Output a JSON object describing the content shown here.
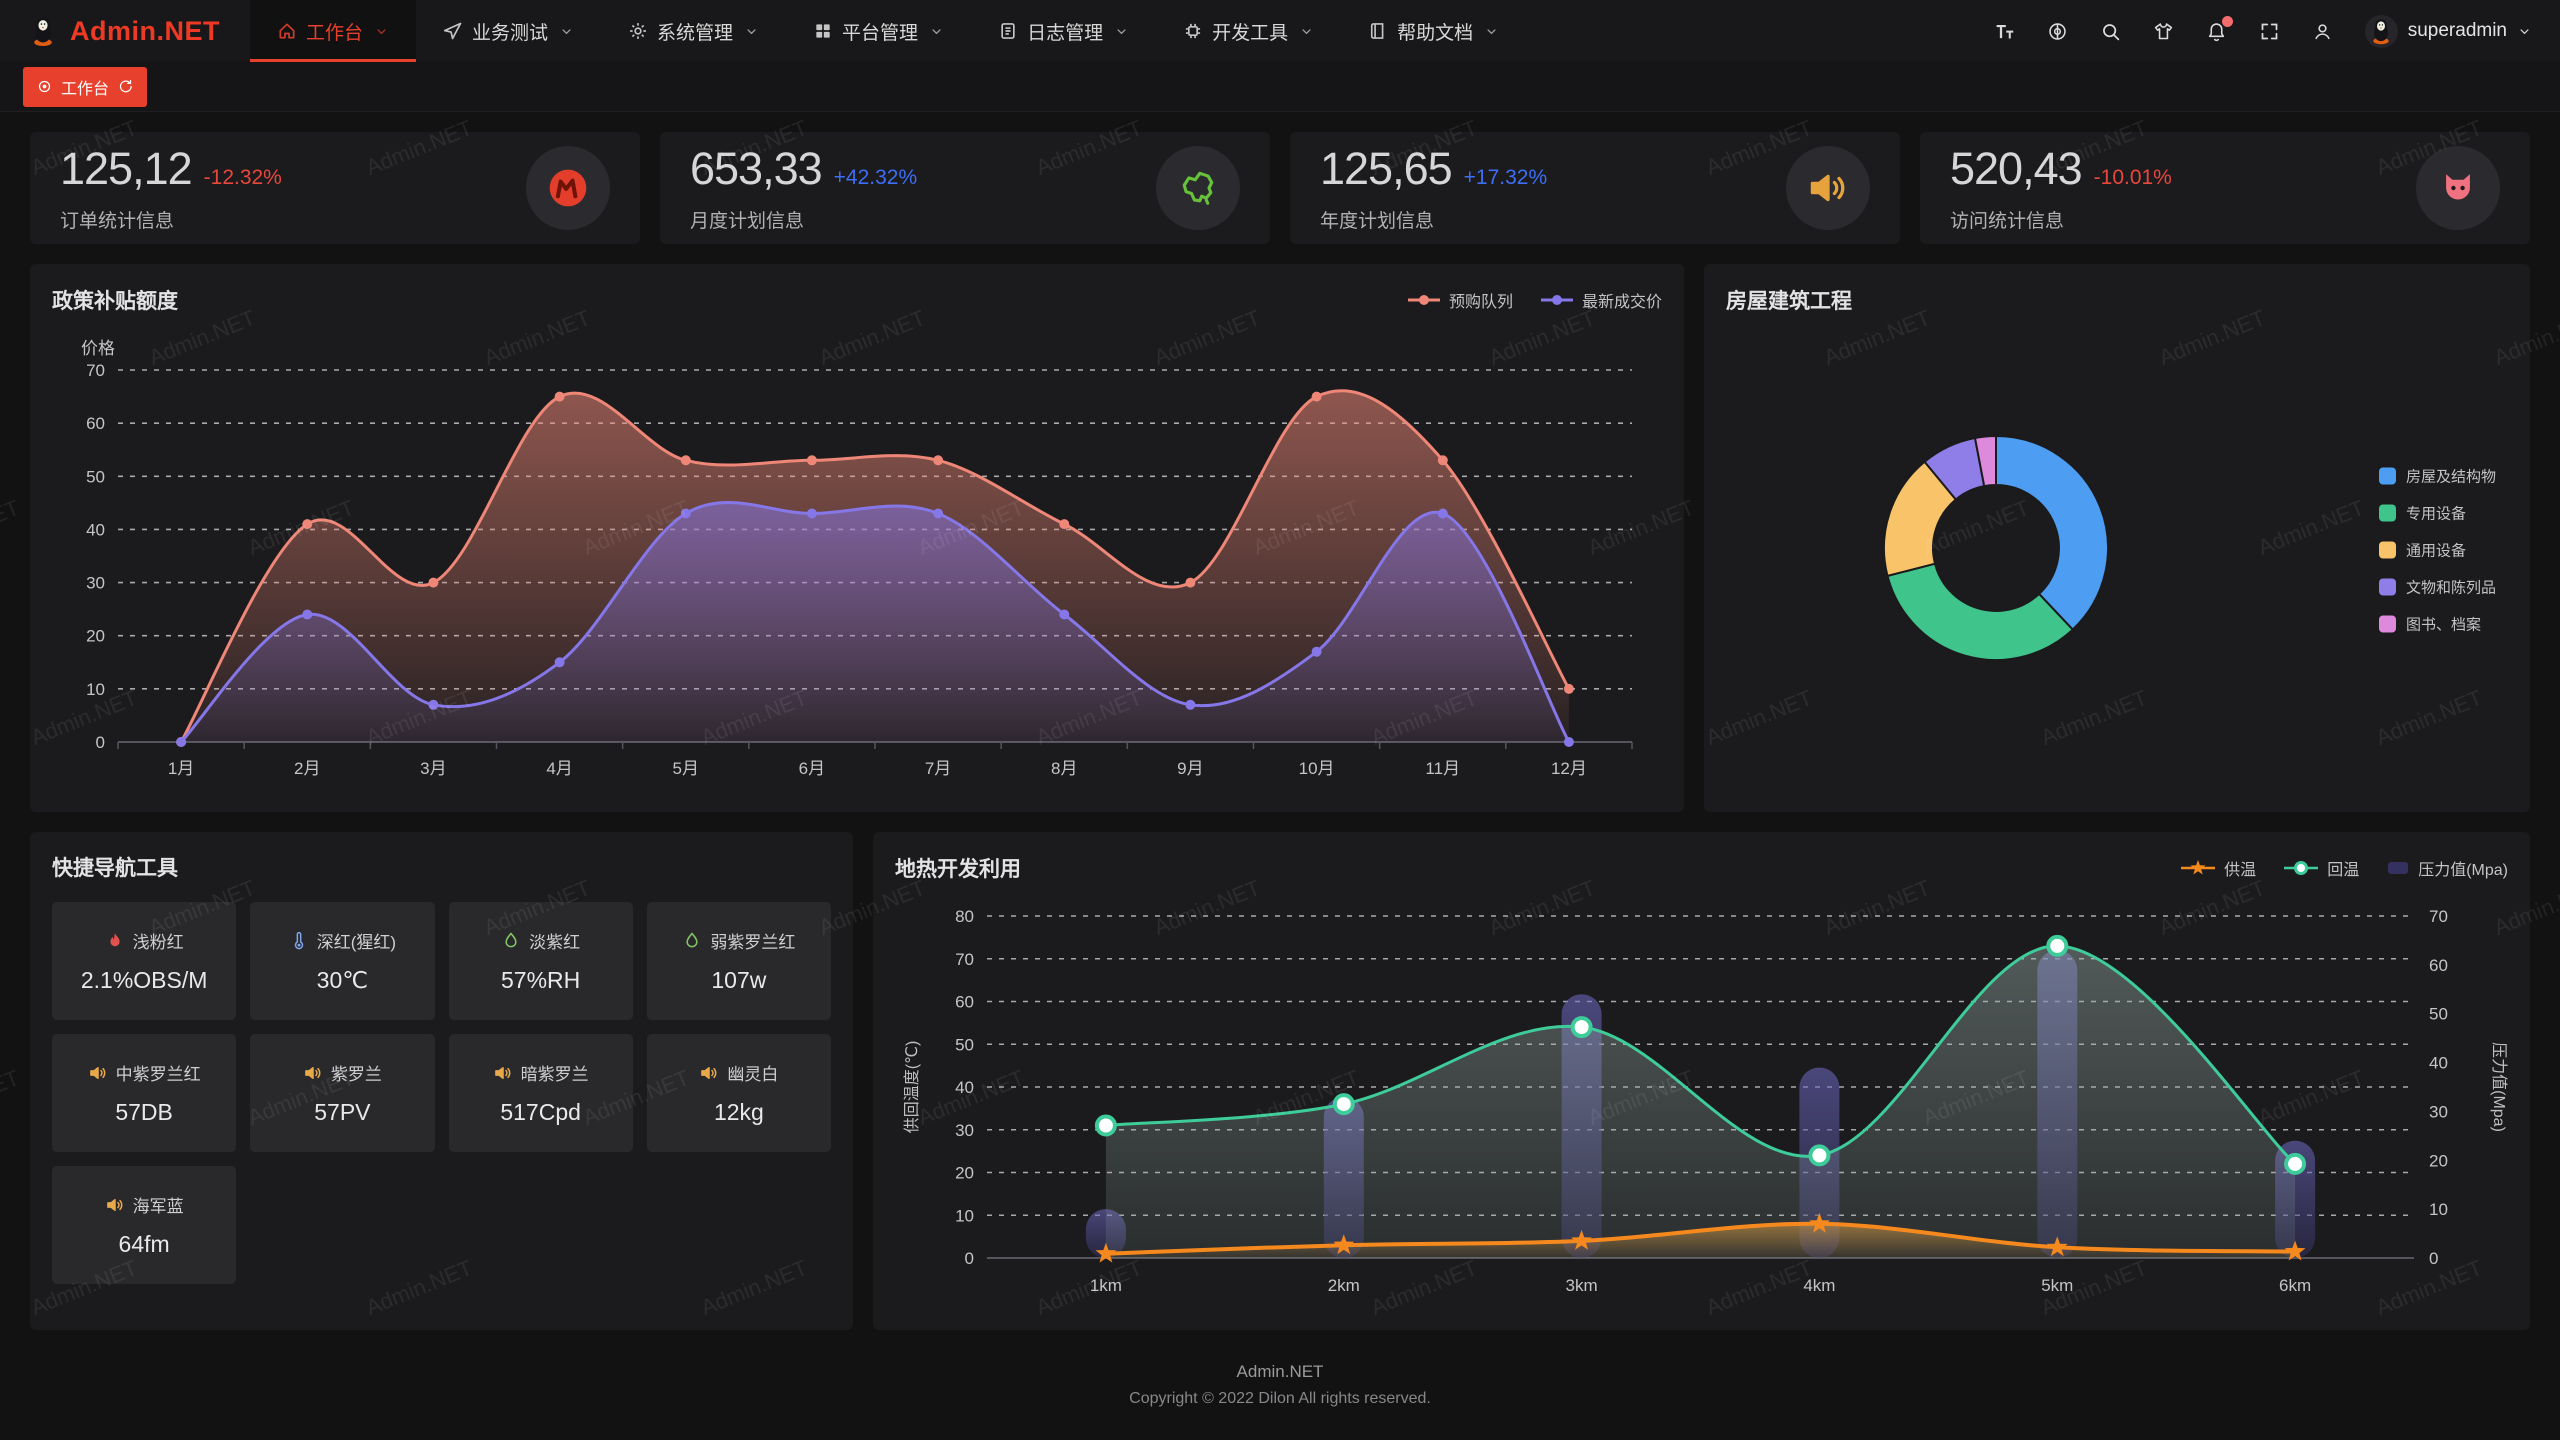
{
  "watermark": {
    "text": "Admin.NET"
  },
  "header": {
    "logo_text": "Admin.NET",
    "menu": [
      {
        "id": "workbench",
        "label": "工作台",
        "icon": "home-icon",
        "active": true
      },
      {
        "id": "business-test",
        "label": "业务测试",
        "icon": "send-icon",
        "active": false
      },
      {
        "id": "system-mgmt",
        "label": "系统管理",
        "icon": "gear-icon",
        "active": false
      },
      {
        "id": "platform-mgmt",
        "label": "平台管理",
        "icon": "grid-icon",
        "active": false
      },
      {
        "id": "log-mgmt",
        "label": "日志管理",
        "icon": "log-icon",
        "active": false
      },
      {
        "id": "dev-tools",
        "label": "开发工具",
        "icon": "chip-icon",
        "active": false
      },
      {
        "id": "help-docs",
        "label": "帮助文档",
        "icon": "book-icon",
        "active": false
      }
    ],
    "actions": [
      {
        "id": "font-size",
        "icon": "font-size-icon",
        "badge": false
      },
      {
        "id": "language",
        "icon": "language-icon",
        "badge": false
      },
      {
        "id": "search",
        "icon": "search-icon",
        "badge": false
      },
      {
        "id": "theme",
        "icon": "theme-icon",
        "badge": false
      },
      {
        "id": "notification",
        "icon": "notification-icon",
        "badge": true
      },
      {
        "id": "fullscreen",
        "icon": "fullscreen-icon",
        "badge": false
      },
      {
        "id": "profile",
        "icon": "user-icon",
        "badge": false
      }
    ],
    "user": {
      "name": "superadmin",
      "avatar_icon": "penguin-icon"
    }
  },
  "tabbar": {
    "active_tab": "工作台"
  },
  "stat_cards": [
    {
      "value": "125,12",
      "delta": "-12.32%",
      "trend": "down",
      "label": "订单统计信息",
      "icon": "meetup-icon",
      "icon_color": "#e23e2b"
    },
    {
      "value": "653,33",
      "delta": "+42.32%",
      "trend": "up",
      "label": "月度计划信息",
      "icon": "china-map-icon",
      "icon_color": "#67c23a"
    },
    {
      "value": "125,65",
      "delta": "+17.32%",
      "trend": "up",
      "label": "年度计划信息",
      "icon": "speaker-icon",
      "icon_color": "#e6a23c"
    },
    {
      "value": "520,43",
      "delta": "-10.01%",
      "trend": "down",
      "label": "访问统计信息",
      "icon": "cat-icon",
      "icon_color": "#f0717f"
    }
  ],
  "chart_data": [
    {
      "type": "area",
      "title": "政策补贴额度",
      "ylabel": "价格",
      "categories": [
        "1月",
        "2月",
        "3月",
        "4月",
        "5月",
        "6月",
        "7月",
        "8月",
        "9月",
        "10月",
        "11月",
        "12月"
      ],
      "ylim": [
        0,
        70
      ],
      "grid": "dashed",
      "legend_position": "top-right",
      "series": [
        {
          "name": "预购队列",
          "color": "#ee8777",
          "values": [
            0,
            41,
            30,
            65,
            53,
            53,
            53,
            41,
            30,
            65,
            53,
            10
          ]
        },
        {
          "name": "最新成交价",
          "color": "#8677e8",
          "values": [
            0,
            24,
            7,
            15,
            43,
            43,
            43,
            24,
            7,
            17,
            43,
            0
          ]
        }
      ]
    },
    {
      "type": "pie",
      "title": "房屋建筑工程",
      "donut": true,
      "legend_position": "right",
      "slices": [
        {
          "label": "房屋及结构物",
          "value": 38,
          "color": "#4d9ef2"
        },
        {
          "label": "专用设备",
          "value": 33,
          "color": "#3fc58c"
        },
        {
          "label": "通用设备",
          "value": 18,
          "color": "#f9c36a"
        },
        {
          "label": "文物和陈列品",
          "value": 8,
          "color": "#8f7de8"
        },
        {
          "label": "图书、档案",
          "value": 3,
          "color": "#dd8add"
        }
      ]
    },
    {
      "type": "line-bar",
      "title": "地热开发利用",
      "categories": [
        "1km",
        "2km",
        "3km",
        "4km",
        "5km",
        "6km"
      ],
      "ylabel_left": "供回温度(℃)",
      "ylabel_right": "压力值(Mpa)",
      "ylim_left": [
        0,
        80
      ],
      "ylim_right": [
        0,
        70
      ],
      "grid": "dashed",
      "legend_position": "top-right",
      "series": [
        {
          "name": "供温",
          "type": "line",
          "marker": "star",
          "axis": "left",
          "color": "#f5891d",
          "values": [
            1,
            3,
            4,
            8,
            2.5,
            1.5
          ]
        },
        {
          "name": "回温",
          "type": "line",
          "marker": "circle",
          "axis": "left",
          "color": "#3ecd9a",
          "values": [
            31,
            36,
            54,
            24,
            73,
            22
          ]
        },
        {
          "name": "压力值(Mpa)",
          "type": "bar",
          "marker": "rect",
          "axis": "right",
          "color": "#494573",
          "values": [
            10,
            33,
            54,
            39,
            63,
            24
          ]
        }
      ]
    }
  ],
  "quick_nav": {
    "title": "快捷导航工具",
    "items": [
      {
        "name": "浅粉红",
        "value": "2.1%OBS/M",
        "icon": "volcano-icon",
        "icon_color": "#e05250"
      },
      {
        "name": "深红(猩红)",
        "value": "30℃",
        "icon": "thermometer-icon",
        "icon_color": "#7ea6ec"
      },
      {
        "name": "淡紫红",
        "value": "57%RH",
        "icon": "water-drop-icon",
        "icon_color": "#85c766"
      },
      {
        "name": "弱紫罗兰红",
        "value": "107w",
        "icon": "water-drop-icon",
        "icon_color": "#85c766"
      },
      {
        "name": "中紫罗兰红",
        "value": "57DB",
        "icon": "speaker-icon",
        "icon_color": "#e8a94b"
      },
      {
        "name": "紫罗兰",
        "value": "57PV",
        "icon": "speaker-icon",
        "icon_color": "#e8a94b"
      },
      {
        "name": "暗紫罗兰",
        "value": "517Cpd",
        "icon": "speaker-icon",
        "icon_color": "#e8a94b"
      },
      {
        "name": "幽灵白",
        "value": "12kg",
        "icon": "speaker-icon",
        "icon_color": "#e8a94b"
      },
      {
        "name": "海军蓝",
        "value": "64fm",
        "icon": "speaker-icon",
        "icon_color": "#e8a94b"
      }
    ]
  },
  "footer": {
    "line1": "Admin.NET",
    "line2": "Copyright © 2022 Dilon All rights reserved."
  }
}
